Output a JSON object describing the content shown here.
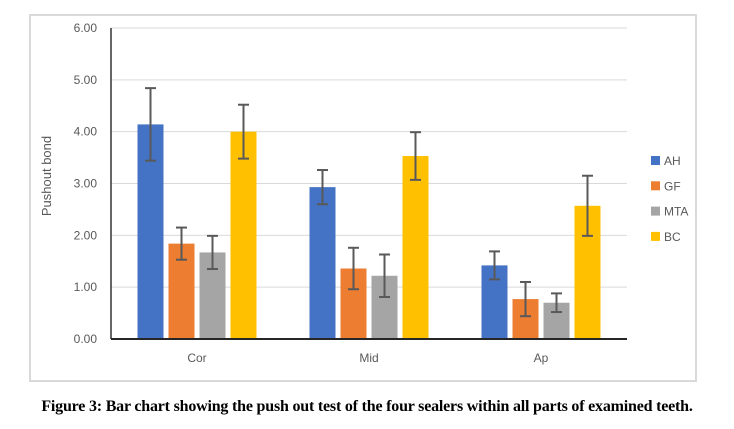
{
  "figure": {
    "caption": "Figure 3: Bar chart showing the push out test of the four sealers within all parts of examined teeth."
  },
  "chart_data": {
    "type": "bar",
    "title": "",
    "xlabel": "",
    "ylabel": "Pushout bond",
    "categories": [
      "Cor",
      "Mid",
      "Ap"
    ],
    "series": [
      {
        "name": "AH",
        "color": "#4472C4",
        "values": [
          4.14,
          2.93,
          1.42
        ],
        "errors": [
          0.7,
          0.33,
          0.27
        ]
      },
      {
        "name": "GF",
        "color": "#ED7D31",
        "values": [
          1.84,
          1.36,
          0.77
        ],
        "errors": [
          0.31,
          0.4,
          0.33
        ]
      },
      {
        "name": "MTA",
        "color": "#A5A5A5",
        "values": [
          1.67,
          1.22,
          0.7
        ],
        "errors": [
          0.32,
          0.41,
          0.18
        ]
      },
      {
        "name": "BC",
        "color": "#FFC000",
        "values": [
          4.0,
          3.53,
          2.57
        ],
        "errors": [
          0.52,
          0.46,
          0.58
        ]
      }
    ],
    "ylim": [
      0,
      6
    ],
    "ytick_step": 1,
    "ytick_labels": [
      "0.00",
      "1.00",
      "2.00",
      "3.00",
      "4.00",
      "5.00",
      "6.00"
    ],
    "grid": true,
    "error_bars": true,
    "legend_position": "right",
    "colors": {
      "grid": "#D9D9D9",
      "axis": "#262626",
      "error_bar": "#595959",
      "tick_text": "#595959",
      "chart_border": "#D9D9D9",
      "background": "#FFFFFF"
    }
  }
}
